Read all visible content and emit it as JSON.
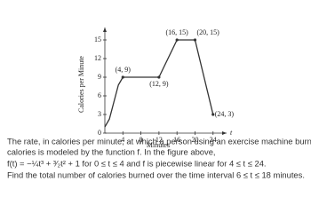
{
  "chart_data": {
    "type": "line",
    "ylabel": "Calories per Minute",
    "xlabel": "Minutes",
    "x_axis_symbol": "t",
    "x": [
      0,
      1,
      2,
      3,
      4,
      12,
      16,
      20,
      24
    ],
    "values": [
      1,
      2.25,
      5,
      7.75,
      9,
      9,
      15,
      15,
      3
    ],
    "value_labels": [
      null,
      null,
      null,
      null,
      "(4, 9)",
      "(12, 9)",
      "(16, 15)",
      "(20, 15)",
      "(24, 3)"
    ],
    "color": "#333333",
    "xlim": [
      0,
      27
    ],
    "ylim": [
      0,
      17
    ],
    "xticks": [
      4,
      8,
      12,
      16,
      20,
      24
    ],
    "yticks": [
      0,
      3,
      6,
      9,
      12,
      15
    ]
  },
  "paragraph": [
    "The rate, in calories per minute, at which a person using an exercise machine burns",
    "calories is modeled by the function f. In the figure above,",
    "f(t) = −¼t³ + ³⁄₂t² + 1 for 0 ≤ t ≤ 4 and f is piecewise linear for 4 ≤ t ≤ 24.",
    "Find the total number of calories burned over the time interval 6 ≤ t ≤ 18 minutes."
  ]
}
